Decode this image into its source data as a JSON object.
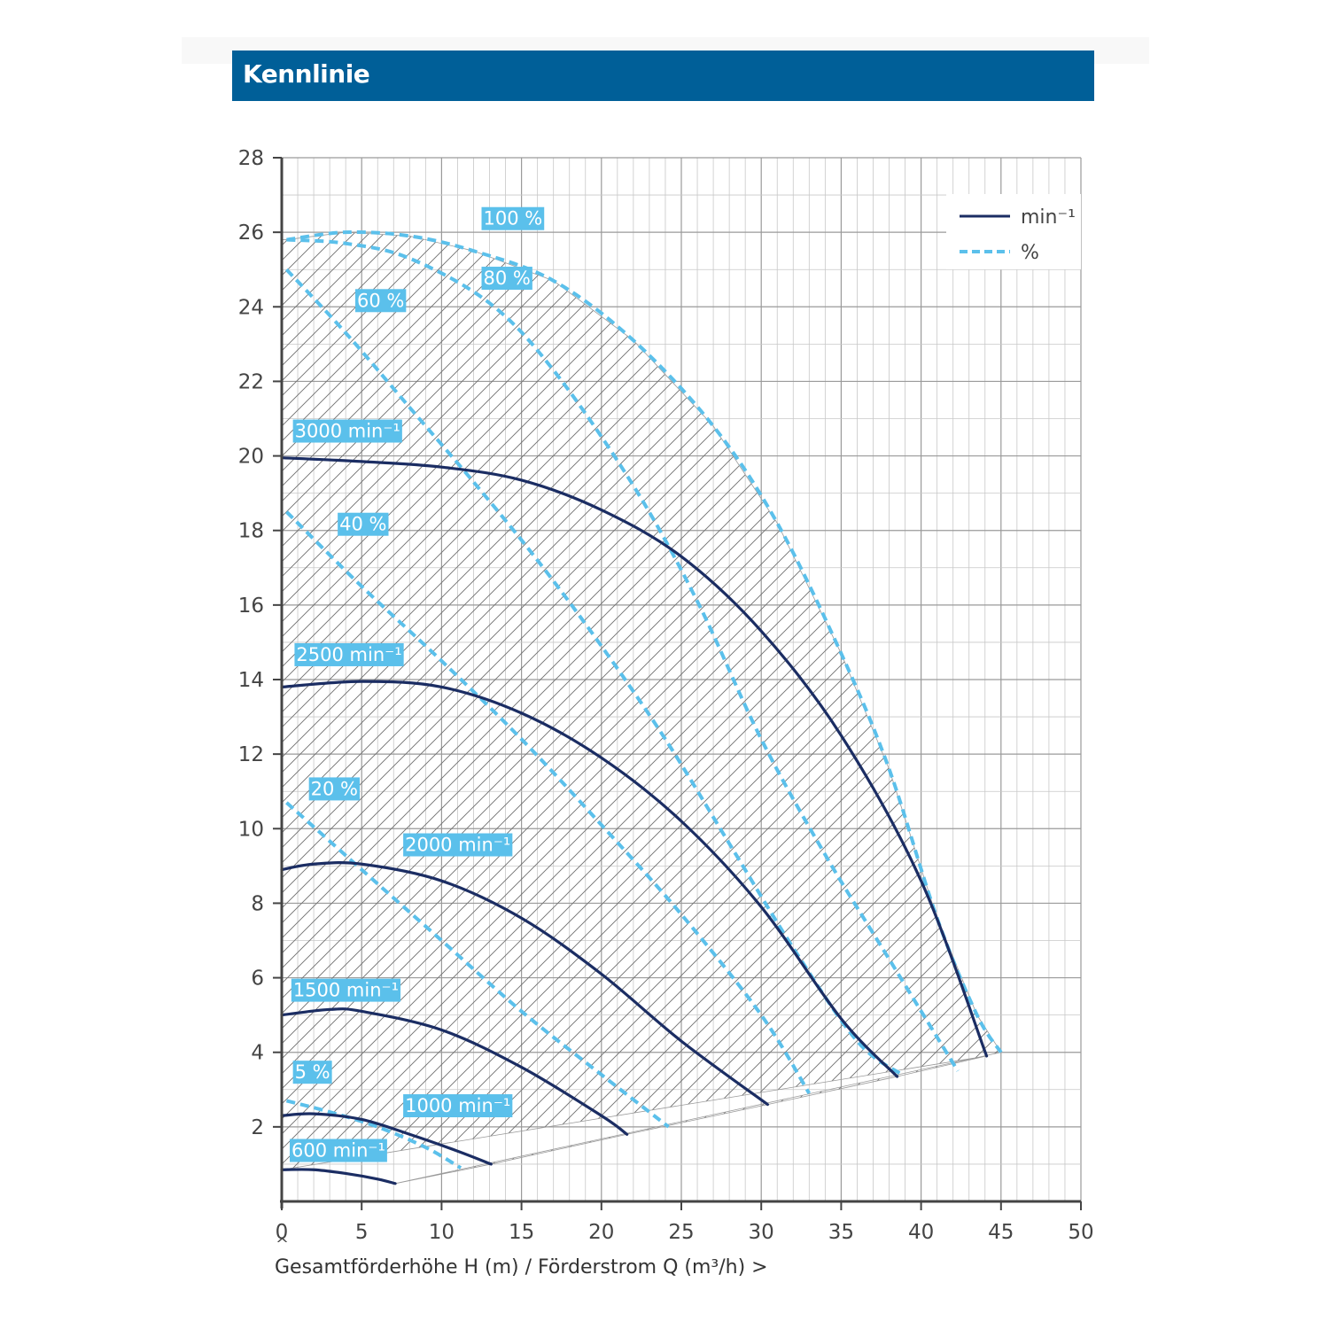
{
  "header": {
    "title": "Kennlinie"
  },
  "colors": {
    "header_bg": "#005f98",
    "speed_line": "#1b2d63",
    "efficiency_line": "#5bc0eb",
    "label_bg": "#5bc0eb",
    "grid": "#b8b8b8",
    "hatch": "#707070"
  },
  "chart_data": {
    "type": "line",
    "xlim": [
      0,
      50
    ],
    "ylim": [
      0,
      28
    ],
    "x_ticks": [
      0,
      5,
      10,
      15,
      20,
      25,
      30,
      35,
      40,
      45,
      50
    ],
    "y_ticks": [
      2,
      4,
      6,
      8,
      10,
      12,
      14,
      16,
      18,
      20,
      22,
      24,
      26,
      28
    ],
    "xlabel": "Gesamtförderhöhe H (m) / Förderstrom Q (m³/h) >",
    "ylabel": "^",
    "grid": true,
    "legend": {
      "position": "top-right",
      "items": [
        {
          "label": "min⁻¹",
          "style": "solid"
        },
        {
          "label": "%",
          "style": "dashed"
        }
      ]
    },
    "speed_curves": [
      {
        "name": "3000 min⁻¹",
        "label_at": [
          0.7,
          20.5
        ],
        "points": [
          [
            0,
            19.95
          ],
          [
            5,
            19.85
          ],
          [
            10,
            19.7
          ],
          [
            15,
            19.35
          ],
          [
            20,
            18.55
          ],
          [
            25,
            17.3
          ],
          [
            30,
            15.3
          ],
          [
            35,
            12.5
          ],
          [
            40,
            8.6
          ],
          [
            44.1,
            3.9
          ]
        ]
      },
      {
        "name": "2500 min⁻¹",
        "label_at": [
          0.8,
          14.5
        ],
        "points": [
          [
            0,
            13.8
          ],
          [
            5,
            13.95
          ],
          [
            10,
            13.8
          ],
          [
            15,
            13.1
          ],
          [
            20,
            11.9
          ],
          [
            25,
            10.2
          ],
          [
            30,
            7.9
          ],
          [
            35,
            4.9
          ],
          [
            38.5,
            3.35
          ]
        ]
      },
      {
        "name": "2000 min⁻¹",
        "label_at": [
          7.6,
          9.4
        ],
        "points": [
          [
            0,
            8.9
          ],
          [
            2,
            9.05
          ],
          [
            5,
            9.05
          ],
          [
            10,
            8.6
          ],
          [
            15,
            7.6
          ],
          [
            20,
            6.1
          ],
          [
            25,
            4.3
          ],
          [
            30.4,
            2.6
          ]
        ]
      },
      {
        "name": "1500 min⁻¹",
        "label_at": [
          0.6,
          5.5
        ],
        "points": [
          [
            0,
            5.0
          ],
          [
            3,
            5.15
          ],
          [
            5,
            5.1
          ],
          [
            10,
            4.6
          ],
          [
            15,
            3.6
          ],
          [
            20,
            2.3
          ],
          [
            21.6,
            1.8
          ]
        ]
      },
      {
        "name": "1000 min⁻¹",
        "label_at": [
          7.6,
          2.4
        ],
        "points": [
          [
            0,
            2.3
          ],
          [
            2,
            2.35
          ],
          [
            5,
            2.2
          ],
          [
            8,
            1.8
          ],
          [
            11,
            1.35
          ],
          [
            13.1,
            1.0
          ]
        ]
      },
      {
        "name": "600 min⁻¹",
        "label_at": [
          0.5,
          1.2
        ],
        "points": [
          [
            0,
            0.85
          ],
          [
            2,
            0.85
          ],
          [
            4,
            0.75
          ],
          [
            6,
            0.6
          ],
          [
            7.1,
            0.48
          ]
        ]
      }
    ],
    "efficiency_curves": [
      {
        "name": "100 %",
        "label_at": [
          12.5,
          26.2
        ],
        "points": [
          [
            0.3,
            25.8
          ],
          [
            4,
            26.0
          ],
          [
            8,
            25.9
          ],
          [
            12,
            25.5
          ],
          [
            17,
            24.7
          ],
          [
            22,
            23.1
          ],
          [
            27,
            20.8
          ],
          [
            31,
            18.2
          ],
          [
            35,
            14.7
          ],
          [
            38,
            11.6
          ],
          [
            41,
            7.6
          ],
          [
            43.5,
            5.0
          ],
          [
            45,
            4.0
          ]
        ]
      },
      {
        "name": "80 %",
        "label_at": [
          12.5,
          24.6
        ],
        "points": [
          [
            0.3,
            25.8
          ],
          [
            4,
            25.7
          ],
          [
            8,
            25.3
          ],
          [
            13,
            24.1
          ],
          [
            17,
            22.3
          ],
          [
            22,
            19.2
          ],
          [
            26,
            16.1
          ],
          [
            30,
            12.4
          ],
          [
            34,
            9.3
          ],
          [
            38,
            6.5
          ],
          [
            42.3,
            3.5
          ]
        ]
      },
      {
        "name": "60 %",
        "label_at": [
          4.6,
          24.0
        ],
        "points": [
          [
            0.3,
            25.0
          ],
          [
            4,
            23.3
          ],
          [
            8,
            21.3
          ],
          [
            12,
            19.3
          ],
          [
            16,
            17.2
          ],
          [
            20,
            14.9
          ],
          [
            24,
            12.4
          ],
          [
            28,
            9.6
          ],
          [
            32,
            6.8
          ],
          [
            36,
            4.3
          ],
          [
            38.8,
            3.4
          ]
        ]
      },
      {
        "name": "40 %",
        "label_at": [
          3.5,
          18.0
        ],
        "points": [
          [
            0.3,
            18.5
          ],
          [
            5,
            16.5
          ],
          [
            10,
            14.5
          ],
          [
            15,
            12.4
          ],
          [
            20,
            10.1
          ],
          [
            25,
            7.7
          ],
          [
            30,
            5.0
          ],
          [
            33,
            2.9
          ]
        ]
      },
      {
        "name": "20 %",
        "label_at": [
          1.7,
          10.9
        ],
        "points": [
          [
            0.3,
            10.7
          ],
          [
            5,
            8.9
          ],
          [
            10,
            7.0
          ],
          [
            15,
            5.1
          ],
          [
            20,
            3.4
          ],
          [
            24.2,
            2.0
          ]
        ]
      },
      {
        "name": "5 %",
        "label_at": [
          0.7,
          3.3
        ],
        "points": [
          [
            0.3,
            2.7
          ],
          [
            3,
            2.4
          ],
          [
            6,
            2.0
          ],
          [
            9,
            1.45
          ],
          [
            11.2,
            0.9
          ]
        ]
      }
    ]
  }
}
